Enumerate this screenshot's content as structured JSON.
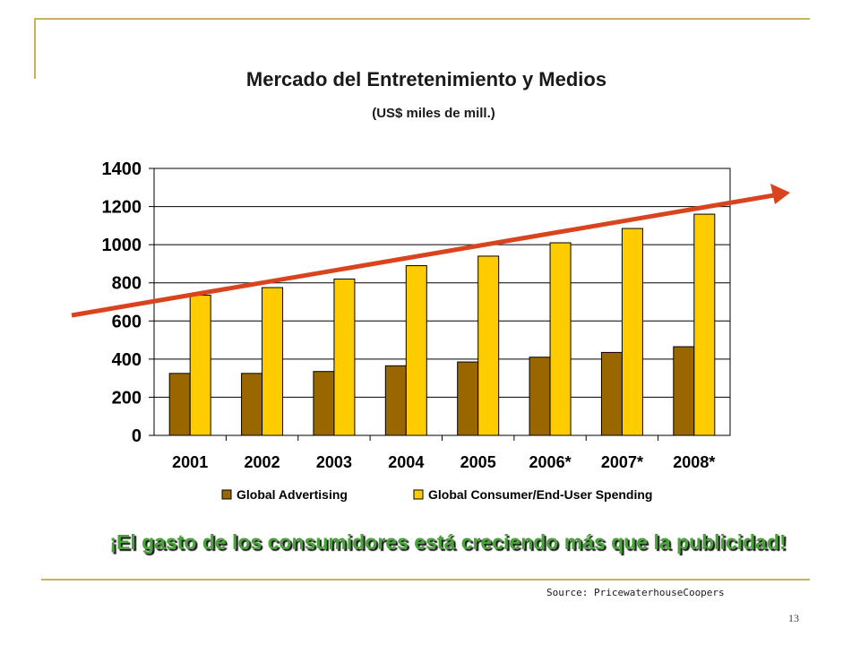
{
  "slide": {
    "headline": "¡El gasto de los consumidores está creciendo más que la publicidad!",
    "source": "Source: PricewaterhouseCoopers",
    "page_number": "13"
  },
  "chart_data": {
    "type": "bar",
    "title": "Mercado del Entretenimiento y Medios",
    "subtitle": "(US$ miles de mill.)",
    "categories": [
      "2001",
      "2002",
      "2003",
      "2004",
      "2005",
      "2006*",
      "2007*",
      "2008*"
    ],
    "series": [
      {
        "name": "Global Advertising",
        "color": "#996600",
        "values": [
          325,
          325,
          335,
          365,
          385,
          410,
          435,
          465
        ]
      },
      {
        "name": "Global Consumer/End-User Spending",
        "color": "#ffcc00",
        "values": [
          735,
          775,
          820,
          890,
          940,
          1010,
          1085,
          1160
        ]
      }
    ],
    "ylim": [
      0,
      1400
    ],
    "yticks": [
      0,
      200,
      400,
      600,
      800,
      1000,
      1200,
      1400
    ],
    "grid": true,
    "legend": "bottom",
    "trend_arrow_color": "#d9441e"
  }
}
